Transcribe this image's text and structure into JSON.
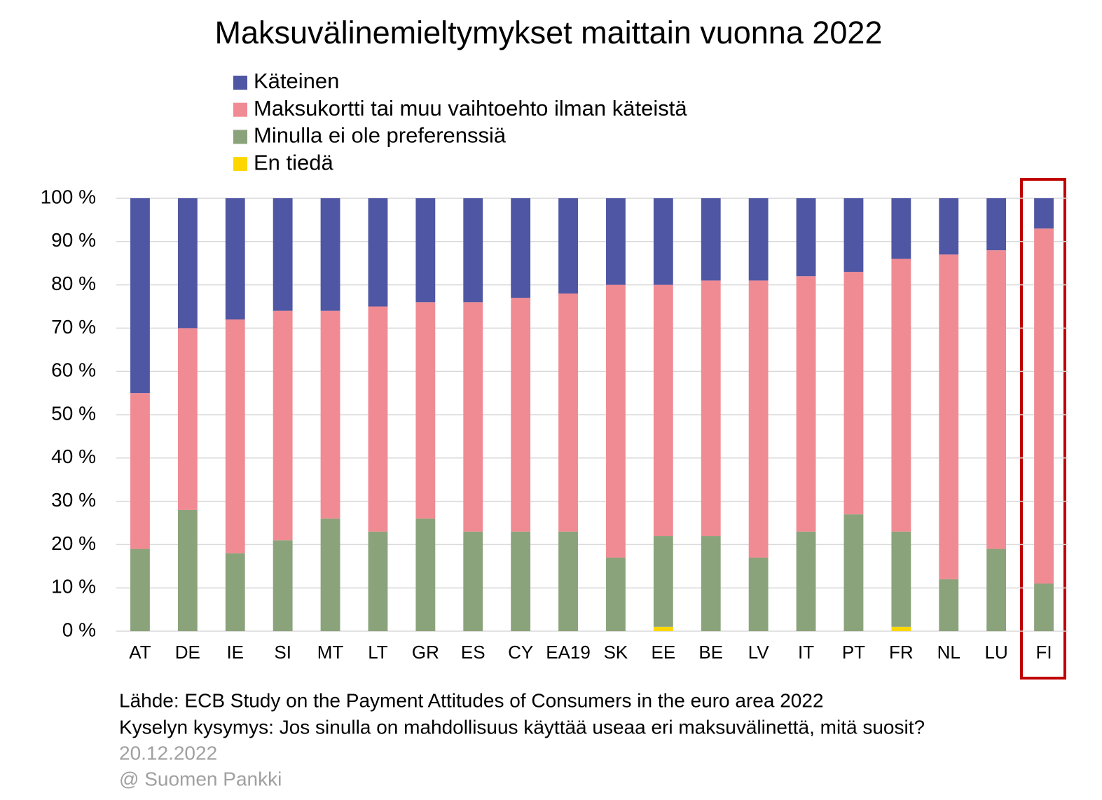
{
  "chart_data": {
    "type": "stacked-bar",
    "title": "Maksuvälinemieltymykset maittain vuonna 2022",
    "categories": [
      "AT",
      "DE",
      "IE",
      "SI",
      "MT",
      "LT",
      "GR",
      "ES",
      "CY",
      "EA19",
      "SK",
      "EE",
      "BE",
      "LV",
      "IT",
      "PT",
      "FR",
      "NL",
      "LU",
      "FI"
    ],
    "series": [
      {
        "name": "Käteinen",
        "color": "#4f56a3",
        "values": [
          45,
          30,
          28,
          26,
          26,
          25,
          24,
          24,
          23,
          22,
          20,
          20,
          19,
          19,
          18,
          17,
          14,
          13,
          12,
          7
        ]
      },
      {
        "name": "Maksukortti tai muu vaihtoehto ilman käteistä",
        "color": "#f08b93",
        "values": [
          36,
          42,
          54,
          53,
          48,
          52,
          50,
          53,
          54,
          55,
          63,
          58,
          59,
          64,
          59,
          56,
          63,
          75,
          69,
          82
        ]
      },
      {
        "name": "Minulla ei ole preferenssiä",
        "color": "#8ba37a",
        "values": [
          19,
          28,
          18,
          21,
          26,
          23,
          26,
          23,
          23,
          23,
          17,
          21,
          22,
          17,
          23,
          27,
          22,
          12,
          19,
          11
        ]
      },
      {
        "name": "En tiedä",
        "color": "#ffd700",
        "values": [
          0,
          0,
          0,
          0,
          0,
          0,
          0,
          0,
          0,
          0,
          0,
          1,
          0,
          0,
          0,
          0,
          1,
          0,
          0,
          0
        ]
      }
    ],
    "ylim": [
      0,
      100
    ],
    "yticks": [
      {
        "value": 0,
        "label": "0 %"
      },
      {
        "value": 10,
        "label": "10 %"
      },
      {
        "value": 20,
        "label": "20 %"
      },
      {
        "value": 30,
        "label": "30 %"
      },
      {
        "value": 40,
        "label": "40 %"
      },
      {
        "value": 50,
        "label": "50 %"
      },
      {
        "value": 60,
        "label": "60 %"
      },
      {
        "value": 70,
        "label": "70 %"
      },
      {
        "value": 80,
        "label": "80 %"
      },
      {
        "value": 90,
        "label": "90 %"
      },
      {
        "value": 100,
        "label": "100 %"
      }
    ],
    "grid": true,
    "notes": [
      "Lähde: ECB Study on the Payment Attitudes of Consumers in the euro area 2022",
      "Kyselyn kysymys: Jos sinulla on mahdollisuus käyttää useaa eri maksuvälinettä, mitä suosit?",
      "20.12.2022",
      "@ Suomen Pankki"
    ]
  }
}
